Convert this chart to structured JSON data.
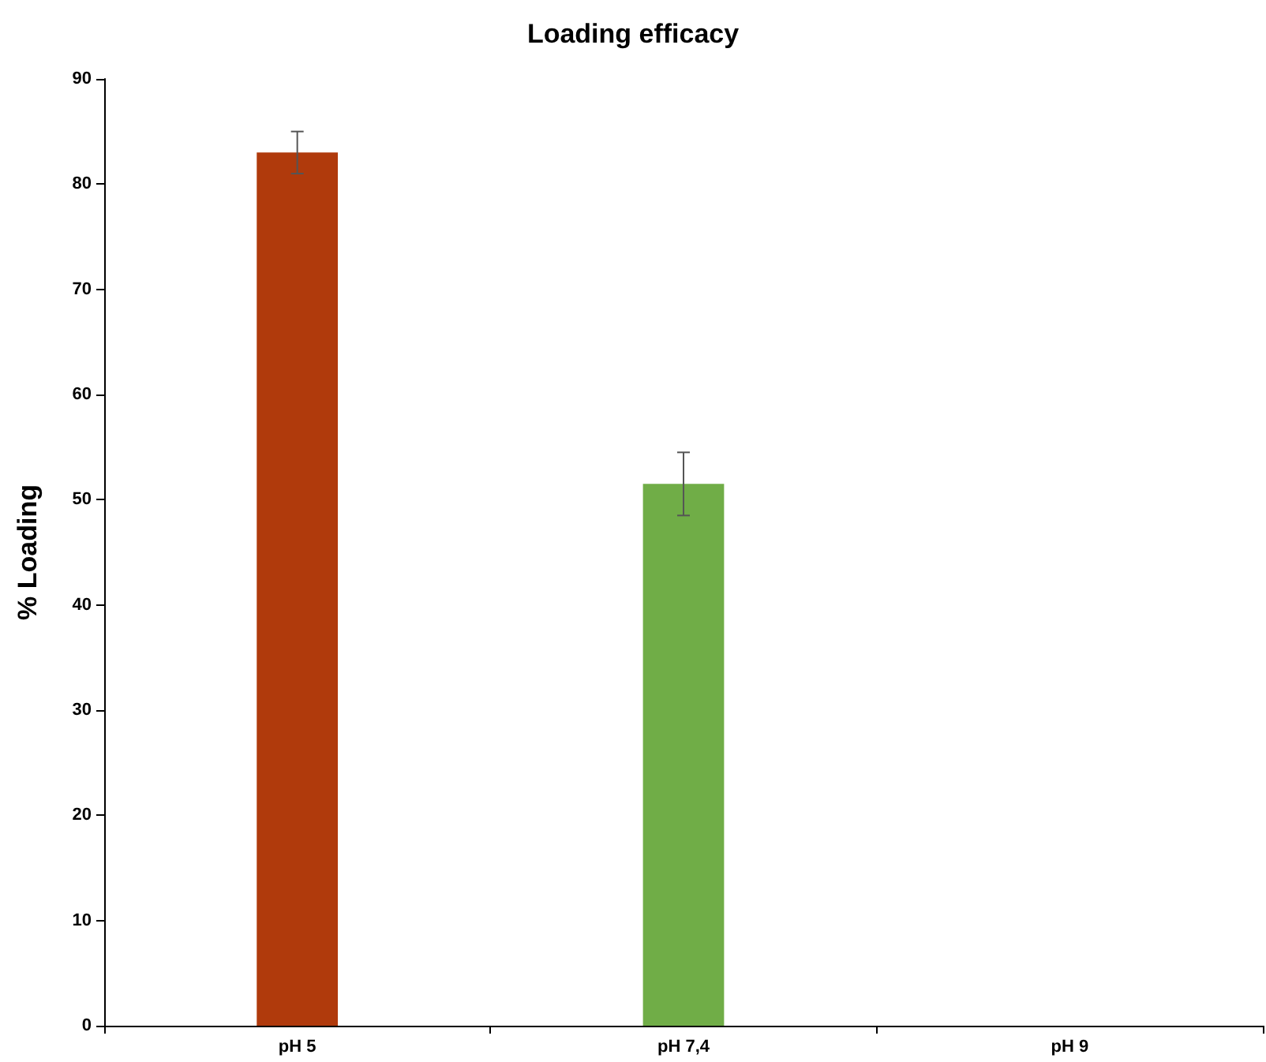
{
  "chart_data": {
    "type": "bar",
    "title": "Loading efficacy",
    "ylabel": "% Loading",
    "categories": [
      "pH 5",
      "pH 7,4",
      "pH 9"
    ],
    "values": [
      83,
      51.5,
      0
    ],
    "colors": [
      "#b03a0c",
      "#70ad47",
      "#4472c4"
    ],
    "errors": [
      2,
      3,
      null
    ],
    "ylim": [
      0,
      90
    ],
    "yticks": [
      0,
      10,
      20,
      30,
      40,
      50,
      60,
      70,
      80,
      90
    ],
    "grid": false
  }
}
